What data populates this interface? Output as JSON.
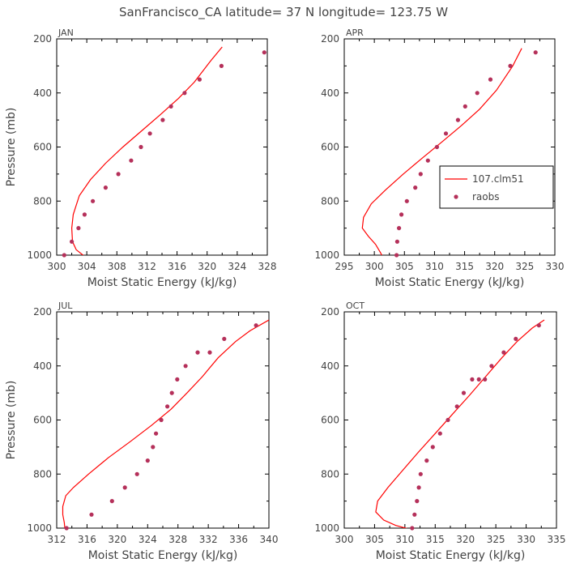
{
  "figure": {
    "title": "SanFrancisco_CA  latitude= 37 N longitude= 123.75 W"
  },
  "colors": {
    "model_line": "#ff0000",
    "raobs_marker": "#b5305a",
    "axis": "#000000",
    "text": "#444444"
  },
  "legend": {
    "entries": [
      {
        "label": "107.clm51",
        "style": "line"
      },
      {
        "label": "raobs",
        "style": "marker"
      }
    ]
  },
  "chart_data": [
    {
      "type": "line",
      "panel_label": "JAN",
      "xlabel": "Moist Static Energy (kJ/kg)",
      "ylabel": "Pressure (mb)",
      "xlim": [
        300,
        328
      ],
      "xticks": [
        300,
        304,
        308,
        312,
        316,
        320,
        324,
        328
      ],
      "ylim": [
        1000,
        200
      ],
      "yticks": [
        200,
        400,
        600,
        800,
        1000
      ],
      "series": [
        {
          "name": "107.clm51",
          "kind": "line",
          "x": [
            304.8,
            303.5,
            302.6,
            302.1,
            302.0,
            302.2,
            303.0,
            304.5,
            306.5,
            308.8,
            311.3,
            313.8,
            316.2,
            318.3,
            320.5,
            322.0
          ],
          "y": [
            1015,
            1000,
            980,
            950,
            900,
            850,
            780,
            720,
            660,
            600,
            540,
            480,
            420,
            360,
            280,
            230
          ]
        },
        {
          "name": "raobs",
          "kind": "scatter",
          "x": [
            301.0,
            302.0,
            302.9,
            303.7,
            304.8,
            306.5,
            308.2,
            309.9,
            311.2,
            312.4,
            314.1,
            315.2,
            317.0,
            319.0,
            321.9,
            327.6
          ],
          "y": [
            1000,
            950,
            900,
            850,
            800,
            750,
            700,
            650,
            600,
            550,
            500,
            450,
            400,
            350,
            300,
            250
          ]
        }
      ]
    },
    {
      "type": "line",
      "panel_label": "APR",
      "xlabel": "Moist Static Energy (kJ/kg)",
      "ylabel": "",
      "xlim": [
        295,
        330
      ],
      "xticks": [
        295,
        300,
        305,
        310,
        315,
        320,
        325,
        330
      ],
      "ylim": [
        1000,
        200
      ],
      "yticks": [
        200,
        400,
        600,
        800,
        1000
      ],
      "series": [
        {
          "name": "107.clm51",
          "kind": "line",
          "x": [
            301.6,
            301.0,
            300.2,
            299.0,
            298.0,
            298.2,
            299.5,
            301.8,
            304.8,
            308.0,
            311.3,
            314.5,
            317.5,
            320.3,
            323.0,
            324.5
          ],
          "y": [
            1015,
            990,
            960,
            930,
            900,
            860,
            810,
            760,
            700,
            640,
            580,
            520,
            460,
            390,
            300,
            235
          ]
        },
        {
          "name": "raobs",
          "kind": "scatter",
          "x": [
            303.7,
            303.8,
            304.1,
            304.5,
            305.4,
            306.8,
            307.7,
            308.9,
            310.4,
            311.9,
            313.9,
            315.1,
            317.1,
            319.3,
            322.6,
            326.8
          ],
          "y": [
            1000,
            950,
            900,
            850,
            800,
            750,
            700,
            650,
            600,
            550,
            500,
            450,
            400,
            350,
            300,
            250
          ]
        }
      ]
    },
    {
      "type": "line",
      "panel_label": "JUL",
      "xlabel": "Moist Static Energy (kJ/kg)",
      "ylabel": "Pressure (mb)",
      "xlim": [
        312,
        340
      ],
      "xticks": [
        312,
        316,
        320,
        324,
        328,
        332,
        336,
        340
      ],
      "ylim": [
        1000,
        200
      ],
      "yticks": [
        200,
        400,
        600,
        800,
        1000
      ],
      "series": [
        {
          "name": "107.clm51",
          "kind": "line",
          "x": [
            313.1,
            313.0,
            312.8,
            312.8,
            313.2,
            314.2,
            316.2,
            318.8,
            321.7,
            324.5,
            327.1,
            329.2,
            331.2,
            333.3,
            335.6,
            337.5,
            340.0
          ],
          "y": [
            1010,
            980,
            950,
            920,
            880,
            850,
            800,
            740,
            680,
            620,
            560,
            500,
            440,
            370,
            310,
            270,
            230
          ]
        },
        {
          "name": "raobs",
          "kind": "scatter",
          "x": [
            313.3,
            316.6,
            319.3,
            321.0,
            322.6,
            324.0,
            324.7,
            325.1,
            325.8,
            326.6,
            327.2,
            327.9,
            329.0,
            330.6,
            332.2,
            334.1,
            338.3
          ],
          "y": [
            1000,
            950,
            900,
            850,
            800,
            750,
            700,
            650,
            600,
            550,
            500,
            450,
            400,
            350,
            350,
            300,
            250
          ]
        }
      ]
    },
    {
      "type": "line",
      "panel_label": "OCT",
      "xlabel": "Moist Static Energy (kJ/kg)",
      "ylabel": "",
      "xlim": [
        300,
        335
      ],
      "xticks": [
        300,
        305,
        310,
        315,
        320,
        325,
        330,
        335
      ],
      "ylim": [
        1000,
        200
      ],
      "yticks": [
        200,
        400,
        600,
        800,
        1000
      ],
      "series": [
        {
          "name": "107.clm51",
          "kind": "line",
          "x": [
            311.0,
            308.5,
            306.5,
            305.2,
            305.5,
            307.2,
            309.5,
            312.2,
            315.0,
            317.8,
            320.6,
            323.3,
            326.0,
            328.5,
            331.0,
            333.0
          ],
          "y": [
            1005,
            990,
            970,
            940,
            900,
            850,
            790,
            720,
            650,
            580,
            510,
            440,
            370,
            310,
            260,
            230
          ]
        },
        {
          "name": "raobs",
          "kind": "scatter",
          "x": [
            311.2,
            311.6,
            312.0,
            312.3,
            312.6,
            313.6,
            314.6,
            315.8,
            317.1,
            318.6,
            319.7,
            321.1,
            322.2,
            323.2,
            324.3,
            326.3,
            328.3,
            332.1
          ],
          "y": [
            1000,
            950,
            900,
            850,
            800,
            750,
            700,
            650,
            600,
            550,
            500,
            450,
            450,
            450,
            400,
            350,
            300,
            250
          ]
        }
      ]
    }
  ]
}
